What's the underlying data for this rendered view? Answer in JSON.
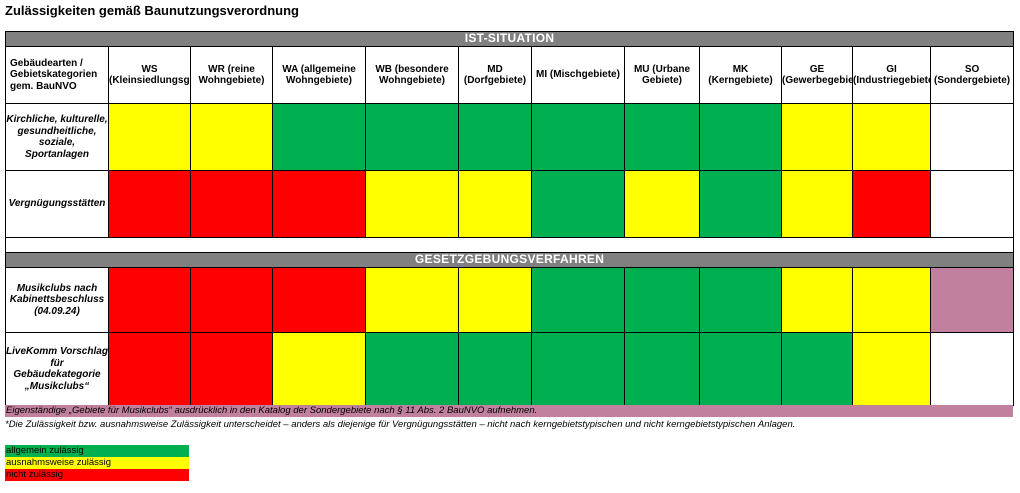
{
  "title": "Zulässigkeiten gemäß Baunutzungsverordnung",
  "section_ist": "IST-SITUATION",
  "section_gesetz": "GESETZGEBUNGSVERFAHREN",
  "corner_header": "Gebäudearten / Gebietskategorien gem. BauNVO",
  "columns": [
    "WS (Kleinsiedlungsgebiete)",
    "WR (reine Wohngebiete)",
    "WA (allgemeine Wohngebiete)",
    "WB (besondere Wohngebiete)",
    "MD (Dorfgebiete)",
    "MI (Mischgebiete)",
    "MU (Urbane Gebiete)",
    "MK (Kerngebiete)",
    "GE (Gewerbegebiete)",
    "GI (Industriegebiete)",
    "SO (Sondergebiete)"
  ],
  "rows": [
    "Kirchliche, kulturelle, gesundheitliche, soziale, Sportanlagen",
    "Vergnügungsstätten",
    "Musikclubs nach Kabinettsbeschluss (04.09.24)",
    "LiveKomm Vorschlag für Gebäudekategorie „Musikclubs“"
  ],
  "status_grid": [
    [
      "ausnahmsweise",
      "ausnahmsweise",
      "allgemein",
      "allgemein",
      "allgemein",
      "allgemein",
      "allgemein",
      "allgemein",
      "ausnahmsweise",
      "ausnahmsweise",
      "leer"
    ],
    [
      "nicht",
      "nicht",
      "nicht",
      "ausnahmsweise",
      "ausnahmsweise",
      "allgemein",
      "ausnahmsweise",
      "allgemein",
      "ausnahmsweise",
      "nicht",
      "leer"
    ],
    [
      "nicht",
      "nicht",
      "nicht",
      "ausnahmsweise",
      "ausnahmsweise",
      "allgemein",
      "allgemein",
      "allgemein",
      "ausnahmsweise",
      "ausnahmsweise",
      "sondergebiet"
    ],
    [
      "nicht",
      "nicht",
      "ausnahmsweise",
      "allgemein",
      "allgemein",
      "allgemein",
      "allgemein",
      "allgemein",
      "allgemein",
      "ausnahmsweise",
      "leer"
    ]
  ],
  "status_colors": {
    "allgemein": "#00b050",
    "ausnahmsweise": "#ffff00",
    "nicht": "#ff0000",
    "sondergebiet": "#c0809e",
    "leer": "#ffffff"
  },
  "note_sondergebiet": "Eigenständige „Gebiete für Musikclubs“ ausdrücklich in den Katalog der Sondergebiete nach § 11 Abs. 2 BauNVO aufnehmen.",
  "note_footnote": "*Die Zulässigkeit bzw. ausnahmsweise Zulässigkeit unterscheidet – anders als diejenige für Vergnügungsstätten – nicht nach kerngebietstypischen und nicht kerngebietstypischen Anlagen.",
  "legend": [
    {
      "label": "allgemein zulässig",
      "color": "#00b050"
    },
    {
      "label": "ausnahmsweise zulässig",
      "color": "#ffff00"
    },
    {
      "label": "nicht zulässig",
      "color": "#ff0000"
    }
  ]
}
